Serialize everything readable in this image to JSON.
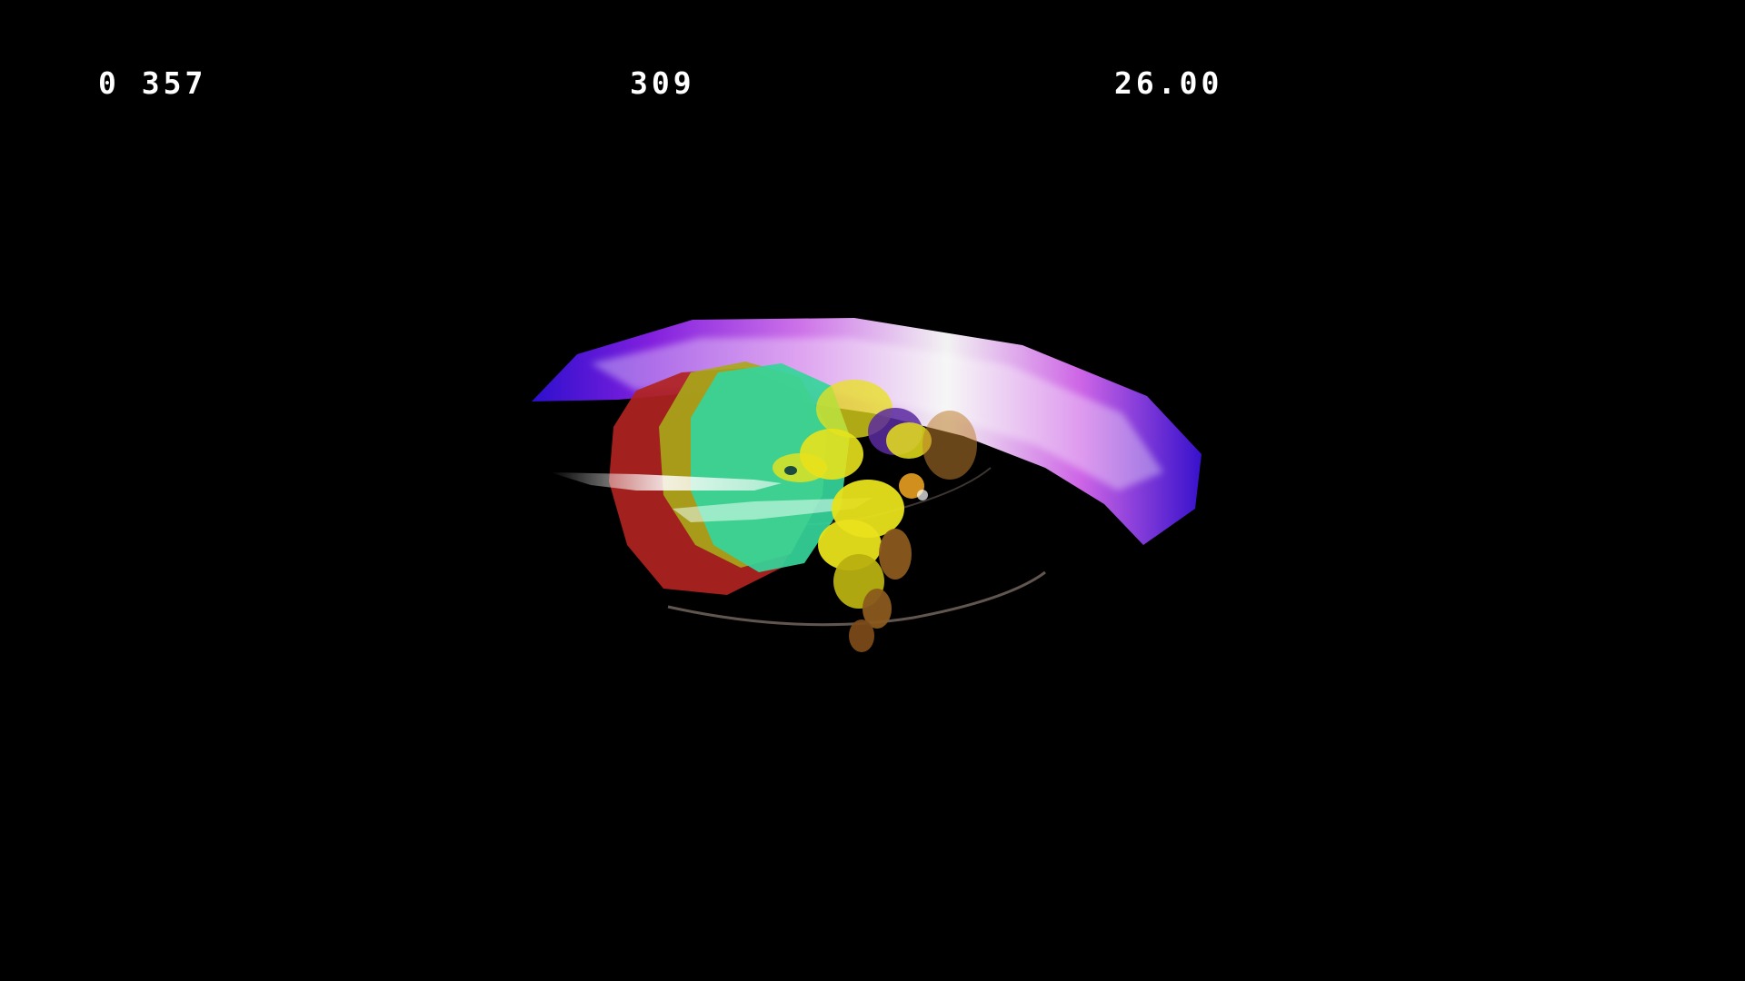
{
  "hud": {
    "left_readout": "0 357",
    "center_readout": "309",
    "right_readout": "26.00"
  },
  "scene": {
    "background_color": "#000000",
    "hitbox_colors": {
      "outer": "#b0231f",
      "middle": "#a8a81a",
      "inner": "#35d59a"
    },
    "swoosh_colors": [
      "#2f10d8",
      "#b63cf0",
      "#ffffff"
    ],
    "character_colors": [
      "#e8e21c",
      "#b8b010",
      "#8a5a1e",
      "#5a2aa0"
    ]
  }
}
